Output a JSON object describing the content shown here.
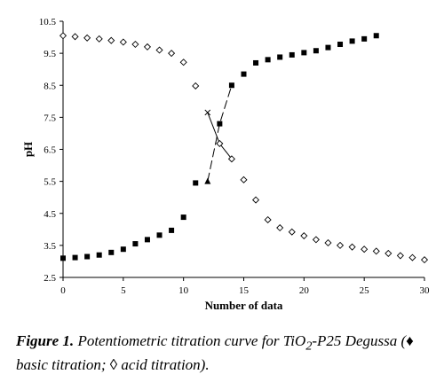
{
  "chart_data": {
    "type": "scatter",
    "xlabel": "Number of data",
    "ylabel": "pH",
    "xlim": [
      0,
      30
    ],
    "ylim": [
      2.5,
      10.5
    ],
    "x_ticks": [
      "0",
      "5",
      "10",
      "15",
      "20",
      "25",
      "30"
    ],
    "y_ticks": [
      "2.5",
      "3.5",
      "4.5",
      "5.5",
      "6.5",
      "7.5",
      "8.5",
      "9.5",
      "10.5"
    ],
    "grid": false,
    "legend": "none",
    "series": [
      {
        "marker": "filled-square",
        "color": "#000000",
        "points": [
          [
            0,
            3.1
          ],
          [
            1,
            3.12
          ],
          [
            2,
            3.15
          ],
          [
            3,
            3.2
          ],
          [
            4,
            3.28
          ],
          [
            5,
            3.38
          ],
          [
            6,
            3.55
          ],
          [
            7,
            3.68
          ],
          [
            8,
            3.82
          ],
          [
            9,
            3.97
          ],
          [
            10,
            4.38
          ],
          [
            11,
            5.45
          ],
          [
            13,
            7.3
          ],
          [
            14,
            8.5
          ],
          [
            15,
            8.85
          ],
          [
            16,
            9.2
          ],
          [
            17,
            9.3
          ],
          [
            18,
            9.38
          ],
          [
            19,
            9.45
          ],
          [
            20,
            9.52
          ],
          [
            21,
            9.58
          ],
          [
            22,
            9.68
          ],
          [
            23,
            9.78
          ],
          [
            24,
            9.88
          ],
          [
            25,
            9.95
          ],
          [
            26,
            10.05
          ]
        ]
      },
      {
        "marker": "open-diamond",
        "color": "#000000",
        "points": [
          [
            0,
            10.05
          ],
          [
            1,
            10.02
          ],
          [
            2,
            9.98
          ],
          [
            3,
            9.95
          ],
          [
            4,
            9.9
          ],
          [
            5,
            9.85
          ],
          [
            6,
            9.78
          ],
          [
            7,
            9.7
          ],
          [
            8,
            9.6
          ],
          [
            9,
            9.5
          ],
          [
            10,
            9.22
          ],
          [
            11,
            8.48
          ],
          [
            13,
            6.68
          ],
          [
            14,
            6.2
          ],
          [
            15,
            5.55
          ],
          [
            16,
            4.92
          ],
          [
            17,
            4.3
          ],
          [
            18,
            4.05
          ],
          [
            19,
            3.92
          ],
          [
            20,
            3.8
          ],
          [
            21,
            3.68
          ],
          [
            22,
            3.58
          ],
          [
            23,
            3.5
          ],
          [
            24,
            3.45
          ],
          [
            25,
            3.38
          ],
          [
            26,
            3.32
          ],
          [
            27,
            3.25
          ],
          [
            28,
            3.18
          ],
          [
            29,
            3.12
          ],
          [
            30,
            3.05
          ]
        ]
      }
    ],
    "crossing_lines": [
      {
        "style": "dashed",
        "start_marker": "filled-triangle",
        "points": [
          [
            12,
            5.5
          ],
          [
            13,
            7.3
          ],
          [
            14,
            8.5
          ]
        ]
      },
      {
        "style": "solid",
        "start_marker": "x",
        "points": [
          [
            12,
            7.65
          ],
          [
            13,
            6.68
          ],
          [
            14,
            6.2
          ]
        ]
      }
    ]
  },
  "caption": {
    "lead": "Figure 1.",
    "text_part1": " Potentiometric titration curve for TiO",
    "subscript": "2",
    "text_part2": "-P25 Degussa (♦ basic titration; ◊ acid titration)."
  }
}
